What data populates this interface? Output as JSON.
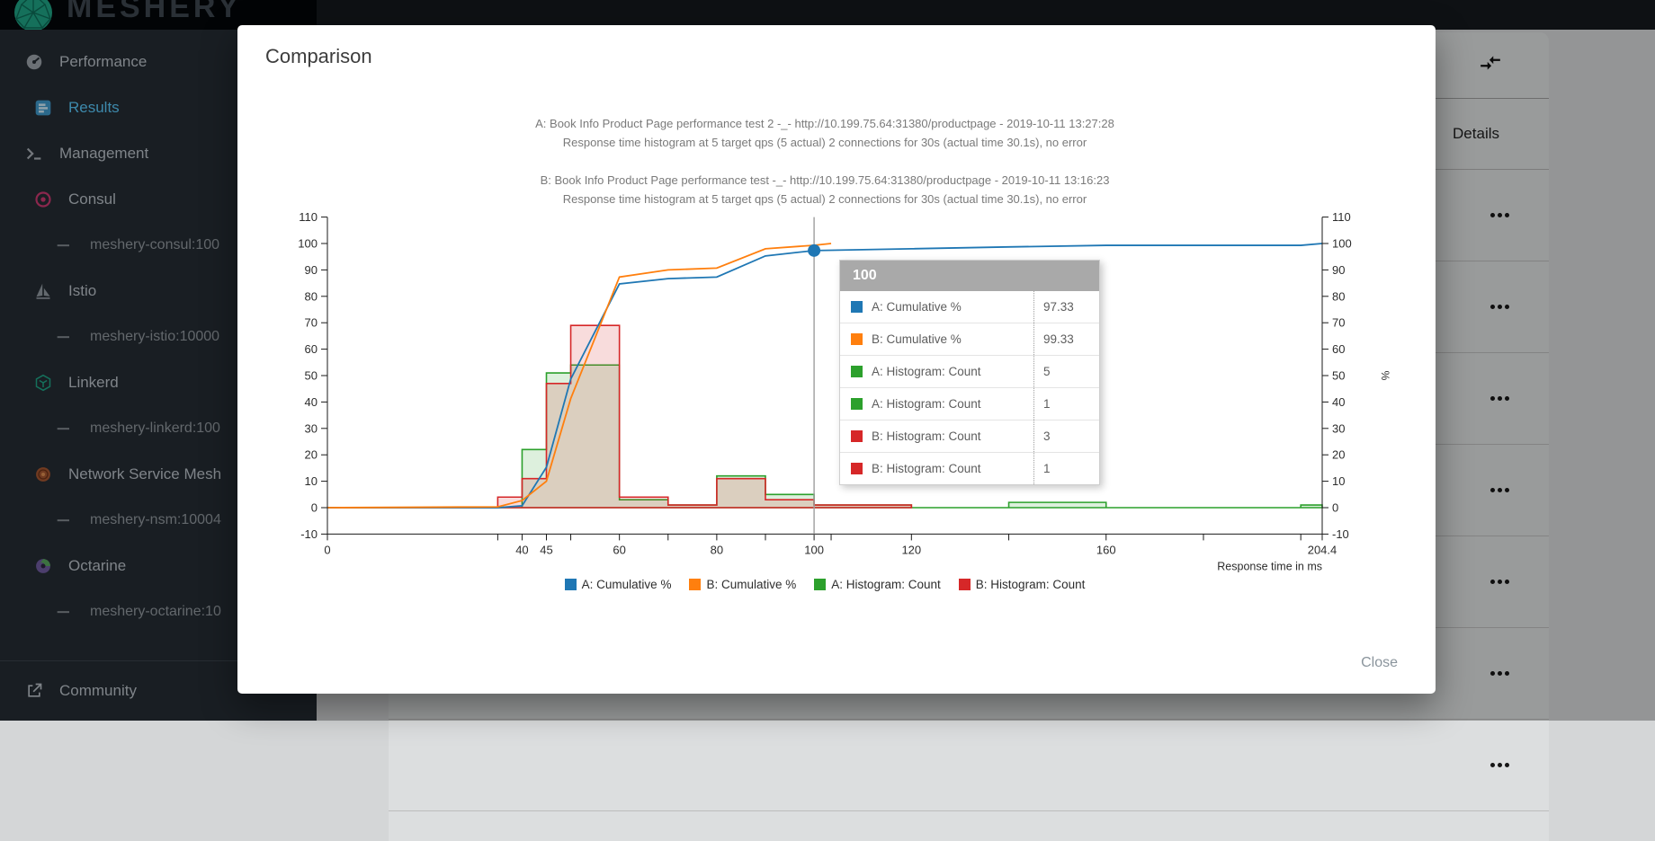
{
  "navbar": {
    "brand": "MESHERY"
  },
  "sidebar": {
    "items": [
      {
        "icon": "gauge-icon",
        "label": "Performance",
        "level": 0,
        "active": false,
        "sub": false
      },
      {
        "icon": "poll-icon",
        "label": "Results",
        "level": 1,
        "active": true,
        "sub": false
      },
      {
        "icon": "terminal-icon",
        "label": "Management",
        "level": 0,
        "active": false,
        "sub": false
      },
      {
        "icon": "consul-icon",
        "label": "Consul",
        "level": 1,
        "active": false,
        "sub": false
      },
      {
        "icon": "dash-icon",
        "label": "meshery-consul:100",
        "level": 2,
        "active": false,
        "sub": true
      },
      {
        "icon": "istio-icon",
        "label": "Istio",
        "level": 1,
        "active": false,
        "sub": false
      },
      {
        "icon": "dash-icon",
        "label": "meshery-istio:10000",
        "level": 2,
        "active": false,
        "sub": true
      },
      {
        "icon": "linkerd-icon",
        "label": "Linkerd",
        "level": 1,
        "active": false,
        "sub": false
      },
      {
        "icon": "dash-icon",
        "label": "meshery-linkerd:100",
        "level": 2,
        "active": false,
        "sub": true
      },
      {
        "icon": "nsm-icon",
        "label": "Network Service Mesh",
        "level": 1,
        "active": false,
        "sub": false
      },
      {
        "icon": "dash-icon",
        "label": "meshery-nsm:10004",
        "level": 2,
        "active": false,
        "sub": true
      },
      {
        "icon": "octarine-icon",
        "label": "Octarine",
        "level": 1,
        "active": false,
        "sub": false
      },
      {
        "icon": "dash-icon",
        "label": "meshery-octarine:10",
        "level": 2,
        "active": false,
        "sub": true
      }
    ],
    "footer": {
      "icon": "external-link-icon",
      "label": "Community"
    }
  },
  "details_panel": {
    "toolbar_icon": "compare-arrows-icon",
    "header": "Details",
    "rows": 7,
    "row_action_icon": "more-options-icon"
  },
  "modal": {
    "title": "Comparison",
    "close_label": "Close",
    "test_a": {
      "line1": "A: Book Info Product Page performance test 2 -_- http://10.199.75.64:31380/productpage - 2019-10-11 13:27:28",
      "line2": "Response time histogram at 5 target qps (5 actual) 2 connections for 30s (actual time 30.1s), no error"
    },
    "test_b": {
      "line1": "B: Book Info Product Page performance test -_- http://10.199.75.64:31380/productpage - 2019-10-11 13:16:23",
      "line2": "Response time histogram at 5 target qps (5 actual) 2 connections for 30s (actual time 30.1s), no error"
    }
  },
  "chart_data": {
    "type": "line+area-step-histogram-comparison",
    "x_axis": {
      "label": "Response time in ms",
      "min": 0,
      "max": 204.4,
      "labeled_ticks": [
        0,
        40,
        45,
        60,
        80,
        100,
        120,
        160,
        204.4
      ],
      "minor_ticks": [
        35,
        50,
        70,
        90,
        103.5,
        140,
        180,
        200
      ]
    },
    "y_axis": {
      "min": -10,
      "max": 110,
      "ticks": [
        110,
        100,
        90,
        80,
        70,
        60,
        50,
        40,
        30,
        20,
        10,
        0,
        -10
      ],
      "right_label": "%"
    },
    "series": [
      {
        "name": "A: Cumulative %",
        "type": "line",
        "color": "#1f77b4",
        "points": [
          [
            0,
            0
          ],
          [
            35,
            0
          ],
          [
            40,
            0.7
          ],
          [
            45,
            15.3
          ],
          [
            50,
            48.7
          ],
          [
            60,
            84.7
          ],
          [
            70,
            86.7
          ],
          [
            80,
            87.3
          ],
          [
            90,
            95.3
          ],
          [
            100,
            97.33
          ],
          [
            120,
            98
          ],
          [
            140,
            98.7
          ],
          [
            160,
            99.3
          ],
          [
            200,
            99.3
          ],
          [
            204.4,
            100
          ]
        ]
      },
      {
        "name": "B: Cumulative %",
        "type": "line",
        "color": "#ff7f0e",
        "points": [
          [
            0,
            0
          ],
          [
            35,
            0.3
          ],
          [
            40,
            2.7
          ],
          [
            45,
            10
          ],
          [
            50,
            41.3
          ],
          [
            60,
            87.3
          ],
          [
            70,
            90
          ],
          [
            80,
            90.7
          ],
          [
            90,
            98
          ],
          [
            100,
            99.33
          ],
          [
            103.5,
            100
          ]
        ]
      },
      {
        "name": "A: Histogram: Count",
        "type": "histogram",
        "color": "#2ca02c",
        "buckets": [
          [
            0,
            40,
            0
          ],
          [
            40,
            45,
            22
          ],
          [
            45,
            50,
            51
          ],
          [
            50,
            60,
            54
          ],
          [
            60,
            70,
            3
          ],
          [
            70,
            80,
            1
          ],
          [
            80,
            90,
            12
          ],
          [
            90,
            100,
            5
          ],
          [
            100,
            120,
            1
          ],
          [
            120,
            140,
            0
          ],
          [
            140,
            160,
            2
          ],
          [
            160,
            200,
            0
          ],
          [
            200,
            204.4,
            1
          ]
        ]
      },
      {
        "name": "B: Histogram: Count",
        "type": "histogram",
        "color": "#d62728",
        "buckets": [
          [
            0,
            35,
            0
          ],
          [
            35,
            40,
            4
          ],
          [
            40,
            45,
            11
          ],
          [
            45,
            50,
            47
          ],
          [
            50,
            60,
            69
          ],
          [
            60,
            70,
            4
          ],
          [
            70,
            80,
            1
          ],
          [
            80,
            90,
            11
          ],
          [
            90,
            100,
            3
          ],
          [
            100,
            120,
            1
          ]
        ]
      }
    ],
    "legend": [
      {
        "label": "A: Cumulative %",
        "color": "#1f77b4"
      },
      {
        "label": "B: Cumulative %",
        "color": "#ff7f0e"
      },
      {
        "label": "A: Histogram: Count",
        "color": "#2ca02c"
      },
      {
        "label": "B: Histogram: Count",
        "color": "#d62728"
      }
    ],
    "cursor": {
      "x": 100,
      "marker_y": 97.33,
      "marker_color": "#1f77b4"
    },
    "tooltip": {
      "title": "100",
      "rows": [
        {
          "color": "#1f77b4",
          "label": "A: Cumulative %",
          "value": "97.33"
        },
        {
          "color": "#ff7f0e",
          "label": "B: Cumulative %",
          "value": "99.33"
        },
        {
          "color": "#2ca02c",
          "label": "A: Histogram: Count",
          "value": "5"
        },
        {
          "color": "#2ca02c",
          "label": "A: Histogram: Count",
          "value": "1"
        },
        {
          "color": "#d62728",
          "label": "B: Histogram: Count",
          "value": "3"
        },
        {
          "color": "#d62728",
          "label": "B: Histogram: Count",
          "value": "1"
        }
      ]
    }
  }
}
